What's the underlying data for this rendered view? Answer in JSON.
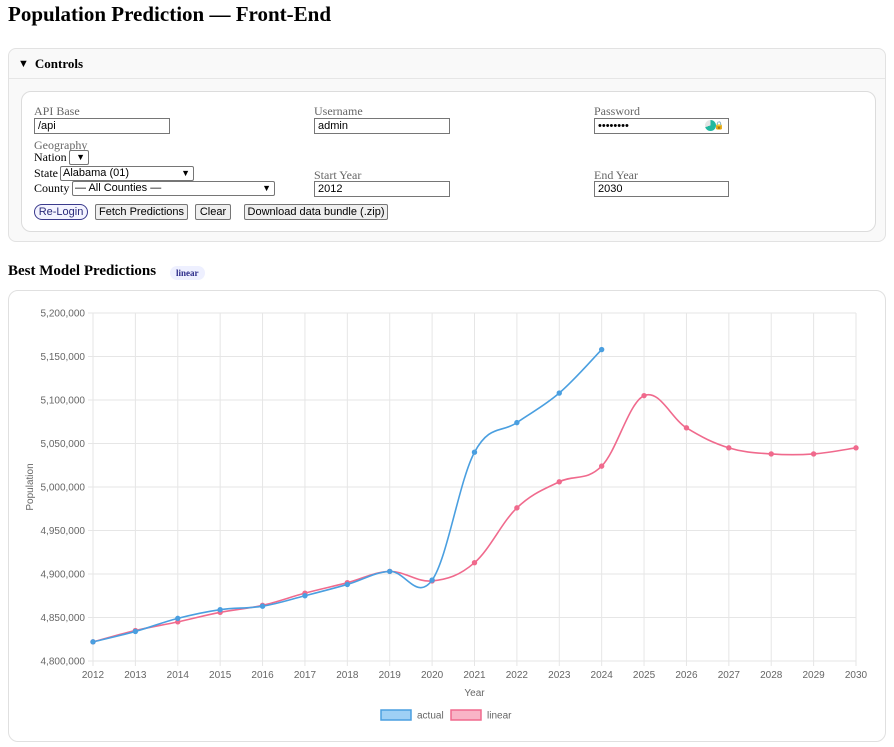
{
  "page": {
    "title": "Population Prediction — Front-End"
  },
  "controls": {
    "header_label": "Controls",
    "api_base": {
      "label": "API Base",
      "value": "/api"
    },
    "username": {
      "label": "Username",
      "value": "admin"
    },
    "password": {
      "label": "Password",
      "value": "••••••••"
    },
    "geography": {
      "label": "Geography",
      "nation_label": "Nation",
      "nation_value": "",
      "state_label": "State",
      "state_value": "Alabama (01)",
      "county_label": "County",
      "county_value": "— All Counties —"
    },
    "start_year": {
      "label": "Start Year",
      "value": "2012"
    },
    "end_year": {
      "label": "End Year",
      "value": "2030"
    },
    "buttons": {
      "relogin": "Re-Login",
      "fetch": "Fetch Predictions",
      "clear": "Clear",
      "download": "Download data bundle (.zip)"
    }
  },
  "predictions": {
    "heading": "Best Model Predictions",
    "badge": "linear"
  },
  "chart_data": {
    "type": "line",
    "xlabel": "Year",
    "ylabel": "Population",
    "x": [
      2012,
      2013,
      2014,
      2015,
      2016,
      2017,
      2018,
      2019,
      2020,
      2021,
      2022,
      2023,
      2024,
      2025,
      2026,
      2027,
      2028,
      2029,
      2030
    ],
    "ylim": [
      4800000,
      5200000
    ],
    "yticks": [
      4800000,
      4850000,
      4900000,
      4950000,
      5000000,
      5050000,
      5100000,
      5150000,
      5200000
    ],
    "ytick_labels": [
      "4,800,000",
      "4,850,000",
      "4,900,000",
      "4,950,000",
      "5,000,000",
      "5,050,000",
      "5,100,000",
      "5,150,000",
      "5,200,000"
    ],
    "grid": true,
    "legend_position": "bottom",
    "series": [
      {
        "name": "actual",
        "color": "#4a9fe0",
        "fill": "#9ed0f5",
        "values": [
          4822000,
          4834000,
          4849000,
          4859000,
          4863000,
          4875000,
          4888000,
          4903000,
          4893000,
          5040000,
          5074000,
          5108000,
          5158000,
          null,
          null,
          null,
          null,
          null,
          null
        ]
      },
      {
        "name": "linear",
        "color": "#f06a8d",
        "fill": "#f9b4c6",
        "values": [
          4822000,
          4835000,
          4845000,
          4856000,
          4864000,
          4878000,
          4890000,
          4903000,
          4892000,
          4913000,
          4976000,
          5006000,
          5024000,
          5105000,
          5068000,
          5045000,
          5038000,
          5038000,
          5045000
        ]
      }
    ]
  }
}
